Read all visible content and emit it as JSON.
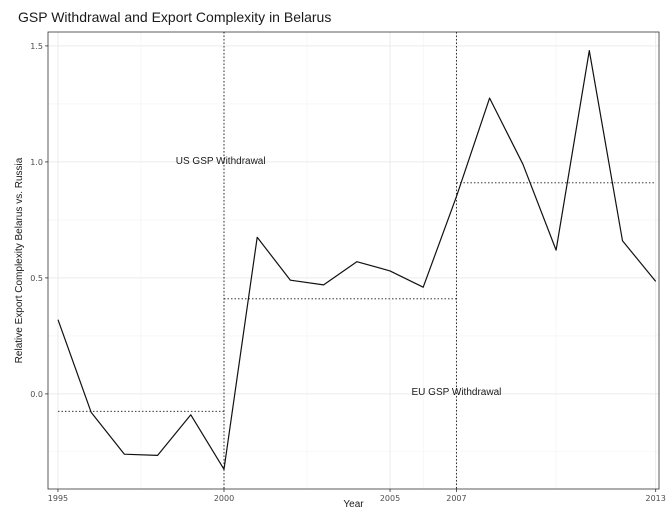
{
  "chart_data": {
    "type": "line",
    "title": "GSP Withdrawal and Export Complexity in Belarus",
    "xlabel": "Year",
    "ylabel": "Relative Export Complexity Belarus vs. Russia",
    "xlim": [
      1994.7,
      2013.1
    ],
    "ylim": [
      -0.41,
      1.56
    ],
    "x_ticks": [
      1995,
      2000,
      2005,
      2007,
      2013
    ],
    "y_ticks": [
      0.0,
      0.5,
      1.0,
      1.5
    ],
    "y_tick_labels": [
      "0.0",
      "0.5",
      "1.0",
      "1.5"
    ],
    "grid": true,
    "series": [
      {
        "x": [
          1995,
          1996,
          1997,
          1998,
          1999,
          2000,
          2001,
          2002,
          2003,
          2004,
          2005,
          2006,
          2007,
          2008,
          2009,
          2010,
          2011,
          2012,
          2013
        ],
        "values": [
          0.32,
          -0.08,
          -0.26,
          -0.265,
          -0.09,
          -0.325,
          0.675,
          0.49,
          0.47,
          0.57,
          0.53,
          0.46,
          0.85,
          1.275,
          0.99,
          0.62,
          1.48,
          0.66,
          0.485
        ]
      }
    ],
    "vertical_lines": [
      {
        "x": 2000,
        "label": "US GSP Withdrawal",
        "label_x": 1999.9,
        "label_y": 0.99
      },
      {
        "x": 2007,
        "label": "EU GSP Withdrawal",
        "label_x": 2007.0,
        "label_y": -0.005
      }
    ],
    "segment_means": [
      {
        "x_start": 1995,
        "x_end": 2000,
        "value": -0.075
      },
      {
        "x_start": 2000,
        "x_end": 2007,
        "value": 0.41
      },
      {
        "x_start": 2007,
        "x_end": 2013,
        "value": 0.91
      }
    ]
  }
}
